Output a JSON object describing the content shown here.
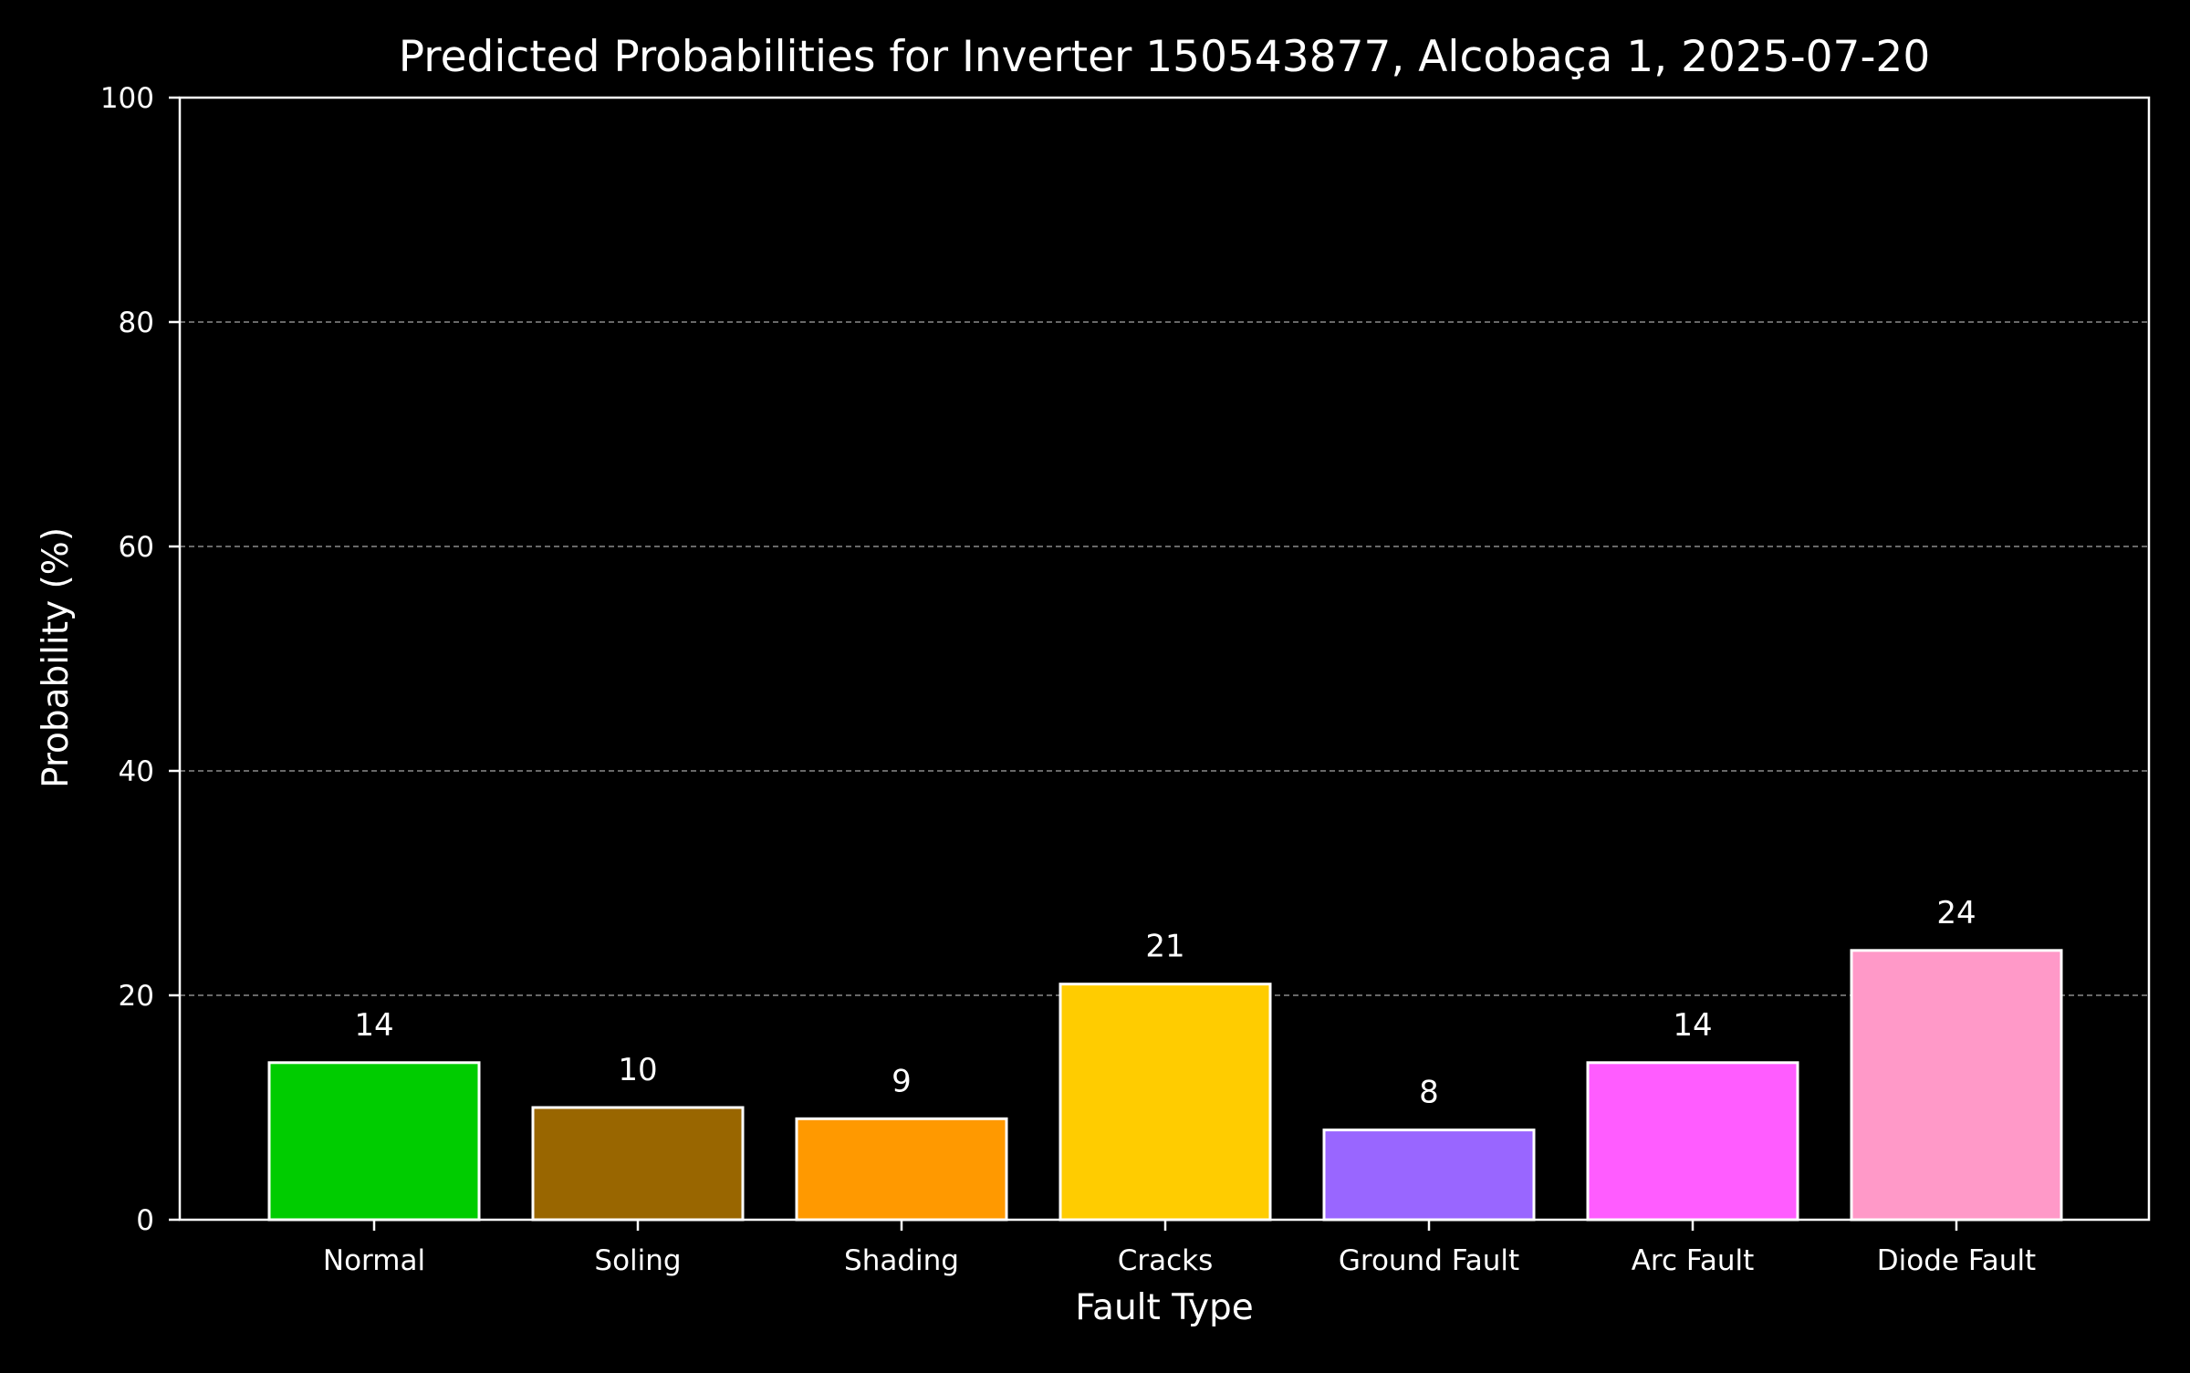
{
  "chart_data": {
    "type": "bar",
    "title": "Predicted Probabilities for Inverter 150543877, Alcobaça 1, 2025-07-20",
    "xlabel": "Fault Type",
    "ylabel": "Probability (%)",
    "categories": [
      "Normal",
      "Soling",
      "Shading",
      "Cracks",
      "Ground Fault",
      "Arc Fault",
      "Diode Fault"
    ],
    "values": [
      14,
      10,
      9,
      21,
      8,
      14,
      24
    ],
    "value_labels": [
      "14",
      "10",
      "9",
      "21",
      "8",
      "14",
      "24"
    ],
    "colors": [
      "#00cc00",
      "#996600",
      "#ff9900",
      "#ffcc00",
      "#9966ff",
      "#ff5cff",
      "#ff99c8"
    ],
    "ylim": [
      0,
      100
    ],
    "yticks": [
      0,
      20,
      40,
      60,
      80,
      100
    ],
    "ytick_labels": [
      "0",
      "20",
      "40",
      "60",
      "80",
      "100"
    ],
    "grid": "y-dashed",
    "background": "#000000",
    "foreground": "#ffffff"
  }
}
